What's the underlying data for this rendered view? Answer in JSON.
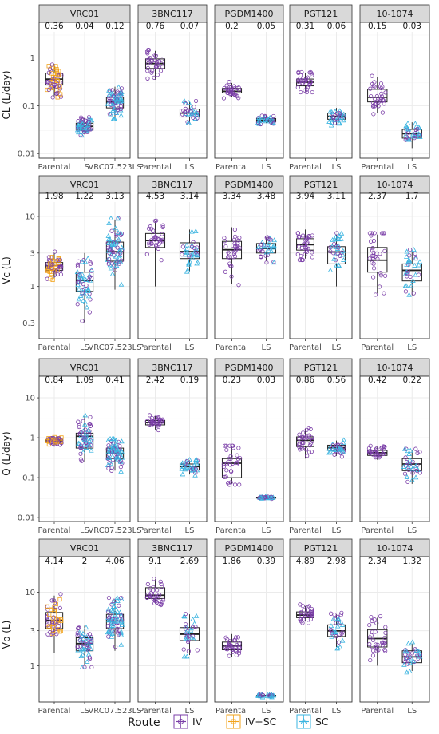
{
  "chart_data": {
    "type": "boxplot-facet",
    "colors": {
      "IV": "#7b3fa8",
      "IV+SC": "#f2a31b",
      "SC": "#3ab4e0",
      "strip": "#d9d9d9",
      "panel_border": "#333333",
      "grid": "#ebebeb"
    },
    "legend": {
      "title": "Route",
      "entries": [
        "IV",
        "IV+SC",
        "SC"
      ],
      "position": "bottom"
    },
    "facets": [
      "VRC01",
      "3BNC117",
      "PGDM1400",
      "PGT121",
      "10-1074"
    ],
    "rows": [
      {
        "ylabel": "CL (L/day)",
        "yscale": "log10",
        "ylim": [
          0.008,
          3.5
        ],
        "yticks": [
          0.01,
          0.1,
          1
        ],
        "ytick_labels": [
          "0.01",
          "0.1",
          "1"
        ],
        "panels": [
          {
            "categories": [
              "Parental",
              "LS",
              "VRC07.523LS"
            ],
            "medians": [
              "0.36",
              "0.04",
              "0.12"
            ],
            "boxes": [
              {
                "min": 0.15,
                "q1": 0.27,
                "median": 0.36,
                "q3": 0.48,
                "max": 0.75
              },
              {
                "min": 0.025,
                "q1": 0.031,
                "median": 0.037,
                "q3": 0.043,
                "max": 0.055
              },
              {
                "min": 0.055,
                "q1": 0.09,
                "median": 0.12,
                "q3": 0.15,
                "max": 0.25
              }
            ],
            "routes": [
              [
                "IV",
                "IV+SC"
              ],
              [
                "IV",
                "SC"
              ],
              [
                "IV",
                "SC"
              ]
            ]
          },
          {
            "categories": [
              "Parental",
              "LS"
            ],
            "medians": [
              "0.76",
              "0.07"
            ],
            "boxes": [
              {
                "min": 0.35,
                "q1": 0.6,
                "median": 0.76,
                "q3": 0.95,
                "max": 1.4
              },
              {
                "min": 0.045,
                "q1": 0.058,
                "median": 0.07,
                "q3": 0.085,
                "max": 0.12
              }
            ],
            "routes": [
              [
                "IV"
              ],
              [
                "IV",
                "SC"
              ]
            ]
          },
          {
            "categories": [
              "Parental",
              "LS"
            ],
            "medians": [
              "0.2",
              "0.05"
            ],
            "boxes": [
              {
                "min": 0.15,
                "q1": 0.185,
                "median": 0.2,
                "q3": 0.23,
                "max": 0.3
              },
              {
                "min": 0.043,
                "q1": 0.046,
                "median": 0.05,
                "q3": 0.054,
                "max": 0.065
              }
            ],
            "routes": [
              [
                "IV"
              ],
              [
                "IV",
                "SC"
              ]
            ]
          },
          {
            "categories": [
              "Parental",
              "LS"
            ],
            "medians": [
              "0.31",
              "0.06"
            ],
            "boxes": [
              {
                "min": 0.2,
                "q1": 0.26,
                "median": 0.31,
                "q3": 0.36,
                "max": 0.48
              },
              {
                "min": 0.04,
                "q1": 0.052,
                "median": 0.06,
                "q3": 0.07,
                "max": 0.09
              }
            ],
            "routes": [
              [
                "IV"
              ],
              [
                "IV",
                "SC"
              ]
            ]
          },
          {
            "categories": [
              "Parental",
              "LS"
            ],
            "medians": [
              "0.15",
              "0.03"
            ],
            "boxes": [
              {
                "min": 0.07,
                "q1": 0.12,
                "median": 0.15,
                "q3": 0.22,
                "max": 0.4
              },
              {
                "min": 0.013,
                "q1": 0.021,
                "median": 0.026,
                "q3": 0.032,
                "max": 0.045
              }
            ],
            "routes": [
              [
                "IV"
              ],
              [
                "IV",
                "SC"
              ]
            ]
          }
        ]
      },
      {
        "ylabel": "Vc (L)",
        "yscale": "log10",
        "ylim": [
          0.18,
          16
        ],
        "yticks": [
          0.3,
          1,
          3,
          10
        ],
        "ytick_labels": [
          "0.3",
          "1",
          "3",
          "10"
        ],
        "panels": [
          {
            "categories": [
              "Parental",
              "LS",
              "VRC07.523LS"
            ],
            "medians": [
              "1.98",
              "1.22",
              "3.13"
            ],
            "boxes": [
              {
                "min": 1.3,
                "q1": 1.7,
                "median": 1.98,
                "q3": 2.2,
                "max": 3.0
              },
              {
                "min": 0.3,
                "q1": 0.85,
                "median": 1.22,
                "q3": 1.6,
                "max": 3.0
              },
              {
                "min": 0.9,
                "q1": 2.3,
                "median": 3.13,
                "q3": 4.3,
                "max": 9.0
              }
            ],
            "routes": [
              [
                "IV",
                "IV+SC"
              ],
              [
                "IV",
                "SC"
              ],
              [
                "IV",
                "SC"
              ]
            ]
          },
          {
            "categories": [
              "Parental",
              "LS"
            ],
            "medians": [
              "4.53",
              "3.14"
            ],
            "boxes": [
              {
                "min": 1.0,
                "q1": 3.6,
                "median": 4.53,
                "q3": 5.7,
                "max": 8.5
              },
              {
                "min": 1.6,
                "q1": 2.5,
                "median": 3.14,
                "q3": 4.2,
                "max": 6.5
              }
            ],
            "routes": [
              [
                "IV"
              ],
              [
                "IV",
                "SC"
              ]
            ]
          },
          {
            "categories": [
              "Parental",
              "LS"
            ],
            "medians": [
              "3.34",
              "3.48"
            ],
            "boxes": [
              {
                "min": 1.1,
                "q1": 2.5,
                "median": 3.34,
                "q3": 4.4,
                "max": 7.0
              },
              {
                "min": 2.3,
                "q1": 3.0,
                "median": 3.48,
                "q3": 4.1,
                "max": 5.0
              }
            ],
            "routes": [
              [
                "IV"
              ],
              [
                "IV",
                "SC"
              ]
            ]
          },
          {
            "categories": [
              "Parental",
              "LS"
            ],
            "medians": [
              "3.94",
              "3.11"
            ],
            "boxes": [
              {
                "min": 2.5,
                "q1": 3.3,
                "median": 3.94,
                "q3": 4.8,
                "max": 6.5
              },
              {
                "min": 1.0,
                "q1": 2.1,
                "median": 3.11,
                "q3": 3.7,
                "max": 5.5
              }
            ],
            "routes": [
              [
                "IV"
              ],
              [
                "IV",
                "SC"
              ]
            ]
          },
          {
            "categories": [
              "Parental",
              "LS"
            ],
            "medians": [
              "2.37",
              "1.7"
            ],
            "boxes": [
              {
                "min": 0.8,
                "q1": 1.6,
                "median": 2.37,
                "q3": 3.6,
                "max": 5.5
              },
              {
                "min": 0.75,
                "q1": 1.2,
                "median": 1.7,
                "q3": 2.1,
                "max": 3.2
              }
            ],
            "routes": [
              [
                "IV"
              ],
              [
                "IV",
                "SC"
              ]
            ]
          }
        ]
      },
      {
        "ylabel": "Q (L/day)",
        "yscale": "log10",
        "ylim": [
          0.008,
          20
        ],
        "yticks": [
          0.01,
          0.1,
          1,
          10
        ],
        "ytick_labels": [
          "0.01",
          "0.1",
          "1",
          "10"
        ],
        "panels": [
          {
            "categories": [
              "Parental",
              "LS",
              "VRC07.523LS"
            ],
            "medians": [
              "0.84",
              "1.09",
              "0.41"
            ],
            "boxes": [
              {
                "min": 0.6,
                "q1": 0.78,
                "median": 0.84,
                "q3": 0.9,
                "max": 1.1
              },
              {
                "min": 0.25,
                "q1": 0.55,
                "median": 1.09,
                "q3": 1.3,
                "max": 3.5
              },
              {
                "min": 0.15,
                "q1": 0.3,
                "median": 0.41,
                "q3": 0.55,
                "max": 0.9
              }
            ],
            "routes": [
              [
                "IV",
                "IV+SC"
              ],
              [
                "IV",
                "SC"
              ],
              [
                "IV",
                "SC"
              ]
            ]
          },
          {
            "categories": [
              "Parental",
              "LS"
            ],
            "medians": [
              "2.42",
              "0.19"
            ],
            "boxes": [
              {
                "min": 1.6,
                "q1": 2.1,
                "median": 2.42,
                "q3": 2.7,
                "max": 3.5
              },
              {
                "min": 0.12,
                "q1": 0.155,
                "median": 0.19,
                "q3": 0.22,
                "max": 0.27
              }
            ],
            "routes": [
              [
                "IV"
              ],
              [
                "IV",
                "SC"
              ]
            ]
          },
          {
            "categories": [
              "Parental",
              "LS"
            ],
            "medians": [
              "0.23",
              "0.03"
            ],
            "boxes": [
              {
                "min": 0.07,
                "q1": 0.1,
                "median": 0.23,
                "q3": 0.3,
                "max": 0.6
              },
              {
                "min": 0.031,
                "q1": 0.0315,
                "median": 0.032,
                "q3": 0.0325,
                "max": 0.033
              }
            ],
            "routes": [
              [
                "IV"
              ],
              [
                "IV",
                "SC"
              ]
            ]
          },
          {
            "categories": [
              "Parental",
              "LS"
            ],
            "medians": [
              "0.86",
              "0.56"
            ],
            "boxes": [
              {
                "min": 0.3,
                "q1": 0.6,
                "median": 0.86,
                "q3": 1.05,
                "max": 1.7
              },
              {
                "min": 0.35,
                "q1": 0.48,
                "median": 0.56,
                "q3": 0.65,
                "max": 0.85
              }
            ],
            "routes": [
              [
                "IV"
              ],
              [
                "IV",
                "SC"
              ]
            ]
          },
          {
            "categories": [
              "Parental",
              "LS"
            ],
            "medians": [
              "0.42",
              "0.22"
            ],
            "boxes": [
              {
                "min": 0.28,
                "q1": 0.36,
                "median": 0.42,
                "q3": 0.48,
                "max": 0.6
              },
              {
                "min": 0.07,
                "q1": 0.15,
                "median": 0.22,
                "q3": 0.3,
                "max": 0.5
              }
            ],
            "routes": [
              [
                "IV"
              ],
              [
                "IV",
                "SC"
              ]
            ]
          }
        ]
      },
      {
        "ylabel": "Vp (L)",
        "yscale": "log10",
        "ylim": [
          0.32,
          22
        ],
        "yticks": [
          1,
          3,
          10
        ],
        "ytick_labels": [
          "1",
          "3",
          "10"
        ],
        "panels": [
          {
            "categories": [
              "Parental",
              "LS",
              "VRC07.523LS"
            ],
            "medians": [
              "4.14",
              "2",
              "4.06"
            ],
            "boxes": [
              {
                "min": 1.5,
                "q1": 3.2,
                "median": 4.14,
                "q3": 5.3,
                "max": 9.0
              },
              {
                "min": 1.0,
                "q1": 1.6,
                "median": 2.0,
                "q3": 2.4,
                "max": 3.5
              },
              {
                "min": 1.6,
                "q1": 3.2,
                "median": 4.06,
                "q3": 5.0,
                "max": 8.0
              }
            ],
            "routes": [
              [
                "IV",
                "IV+SC"
              ],
              [
                "IV",
                "SC"
              ],
              [
                "IV",
                "SC"
              ]
            ]
          },
          {
            "categories": [
              "Parental",
              "LS"
            ],
            "medians": [
              "9.1",
              "2.69"
            ],
            "boxes": [
              {
                "min": 7.0,
                "q1": 8.2,
                "median": 9.1,
                "q3": 11.5,
                "max": 15.0
              },
              {
                "min": 1.4,
                "q1": 2.2,
                "median": 2.69,
                "q3": 3.3,
                "max": 5.0
              }
            ],
            "routes": [
              [
                "IV"
              ],
              [
                "IV",
                "SC"
              ]
            ]
          },
          {
            "categories": [
              "Parental",
              "LS"
            ],
            "medians": [
              "1.86",
              "0.39"
            ],
            "boxes": [
              {
                "min": 1.3,
                "q1": 1.65,
                "median": 1.86,
                "q3": 2.1,
                "max": 2.7
              },
              {
                "min": 0.38,
                "q1": 0.385,
                "median": 0.39,
                "q3": 0.395,
                "max": 0.4
              }
            ],
            "routes": [
              [
                "IV"
              ],
              [
                "IV",
                "SC"
              ]
            ]
          },
          {
            "categories": [
              "Parental",
              "LS"
            ],
            "medians": [
              "4.89",
              "2.98"
            ],
            "boxes": [
              {
                "min": 4.0,
                "q1": 4.5,
                "median": 4.89,
                "q3": 5.4,
                "max": 6.5
              },
              {
                "min": 1.8,
                "q1": 2.5,
                "median": 2.98,
                "q3": 3.6,
                "max": 5.0
              }
            ],
            "routes": [
              [
                "IV"
              ],
              [
                "IV",
                "SC"
              ]
            ]
          },
          {
            "categories": [
              "Parental",
              "LS"
            ],
            "medians": [
              "2.34",
              "1.32"
            ],
            "boxes": [
              {
                "min": 1.0,
                "q1": 1.8,
                "median": 2.34,
                "q3": 3.1,
                "max": 4.5
              },
              {
                "min": 0.85,
                "q1": 1.1,
                "median": 1.32,
                "q3": 1.6,
                "max": 2.0
              }
            ],
            "routes": [
              [
                "IV"
              ],
              [
                "IV",
                "SC"
              ]
            ]
          }
        ]
      }
    ]
  }
}
